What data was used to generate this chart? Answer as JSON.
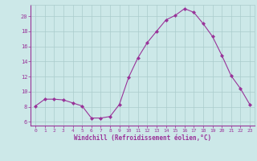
{
  "x": [
    0,
    1,
    2,
    3,
    4,
    5,
    6,
    7,
    8,
    9,
    10,
    11,
    12,
    13,
    14,
    15,
    16,
    17,
    18,
    19,
    20,
    21,
    22,
    23
  ],
  "y": [
    8.1,
    9.0,
    9.0,
    8.9,
    8.5,
    8.1,
    6.5,
    6.5,
    6.7,
    8.3,
    11.9,
    14.5,
    16.5,
    18.0,
    19.5,
    20.1,
    21.0,
    20.5,
    19.0,
    17.3,
    14.8,
    12.1,
    10.4,
    8.3
  ],
  "line_color": "#993399",
  "marker_color": "#993399",
  "bg_color": "#cce8e8",
  "grid_color": "#aacccc",
  "axis_color": "#993399",
  "tick_color": "#993399",
  "xlabel": "Windchill (Refroidissement éolien,°C)",
  "ylabel": "",
  "title": "",
  "xlim": [
    -0.5,
    23.5
  ],
  "ylim": [
    5.5,
    21.5
  ],
  "yticks": [
    6,
    8,
    10,
    12,
    14,
    16,
    18,
    20
  ],
  "xticks": [
    0,
    1,
    2,
    3,
    4,
    5,
    6,
    7,
    8,
    9,
    10,
    11,
    12,
    13,
    14,
    15,
    16,
    17,
    18,
    19,
    20,
    21,
    22,
    23
  ],
  "figwidth": 3.2,
  "figheight": 2.0,
  "dpi": 100
}
